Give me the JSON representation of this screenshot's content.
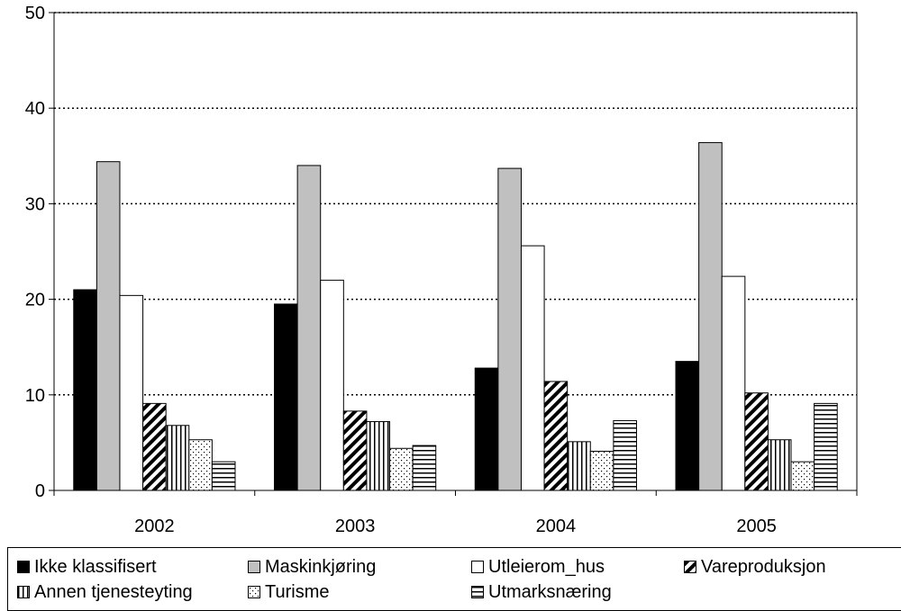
{
  "chart_data": {
    "type": "bar",
    "categories": [
      "2002",
      "2003",
      "2004",
      "2005"
    ],
    "series": [
      {
        "name": "Ikke klassifisert",
        "values": [
          21.0,
          19.5,
          12.8,
          13.5
        ],
        "pattern": "solid",
        "color": "#000000"
      },
      {
        "name": "Maskinkjøring",
        "values": [
          34.4,
          34.0,
          33.7,
          36.4
        ],
        "pattern": "solid",
        "color": "#c0c0c0"
      },
      {
        "name": "Utleierom_hus",
        "values": [
          20.4,
          22.0,
          25.6,
          22.4
        ],
        "pattern": "solid",
        "color": "#ffffff"
      },
      {
        "name": "Vareproduksjon",
        "values": [
          9.1,
          8.3,
          11.4,
          10.2
        ],
        "pattern": "diagonal",
        "color": "#000000"
      },
      {
        "name": "Annen tjenesteyting",
        "values": [
          6.8,
          7.2,
          5.1,
          5.3
        ],
        "pattern": "vertical",
        "color": "#000000"
      },
      {
        "name": "Turisme",
        "values": [
          5.3,
          4.4,
          4.1,
          3.0
        ],
        "pattern": "dots",
        "color": "#000000"
      },
      {
        "name": "Utmarksnæring",
        "values": [
          3.0,
          4.7,
          7.3,
          9.1
        ],
        "pattern": "horizontal",
        "color": "#000000"
      }
    ],
    "ylim": [
      0,
      50
    ],
    "yticks": [
      0,
      10,
      20,
      30,
      40,
      50
    ],
    "grid": "dotted horizontal",
    "legend_position": "bottom"
  }
}
